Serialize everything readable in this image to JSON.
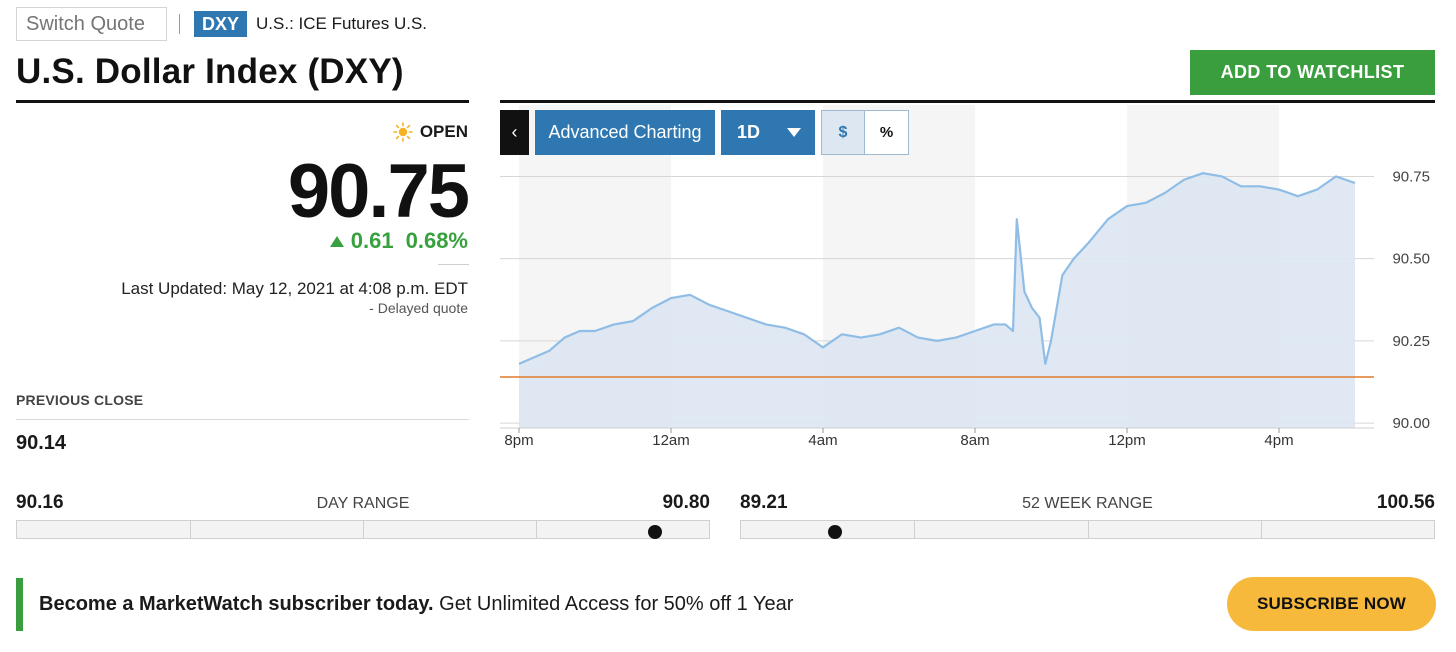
{
  "header": {
    "switch_quote_placeholder": "Switch Quote",
    "ticker": "DXY",
    "exchange": "U.S.: ICE Futures U.S.",
    "title": "U.S. Dollar Index (DXY)",
    "watchlist_label": "ADD TO  WATCHLIST"
  },
  "quote": {
    "market_status": "OPEN",
    "status_icon": "sun-icon",
    "price": "90.75",
    "change": "0.61",
    "change_percent": "0.68%",
    "change_direction": "up",
    "last_updated": "Last Updated: May 12, 2021 at 4:08 p.m. EDT",
    "delayed": "-  Delayed quote",
    "previous_close_label": "PREVIOUS CLOSE",
    "previous_close": "90.14"
  },
  "toolbar": {
    "back_icon": "chevron-left-icon",
    "advanced_label": "Advanced Charting",
    "period_label": "1D",
    "dollar_label": "$",
    "percent_label": "%"
  },
  "chart_data": {
    "type": "area",
    "x_tick_labels": [
      "8pm",
      "12am",
      "4am",
      "8am",
      "12pm",
      "4pm"
    ],
    "y_tick_labels": [
      "90.75",
      "90.50",
      "90.25",
      "90.00"
    ],
    "ylim": [
      90.0,
      90.75
    ],
    "x_range_hours": [
      -0.5,
      22.5
    ],
    "previous_close_line": 90.14,
    "line_color": "#8fbde6",
    "fill_color": "#dde7f2",
    "prev_close_color": "#e07a2a",
    "x": [
      0,
      0.4,
      0.8,
      1.2,
      1.6,
      2,
      2.5,
      3,
      3.5,
      4,
      4.5,
      5,
      5.5,
      6,
      6.5,
      7,
      7.5,
      8,
      8.5,
      9,
      9.5,
      10,
      10.5,
      11,
      11.5,
      12,
      12.5,
      12.8,
      13.0,
      13.1,
      13.3,
      13.5,
      13.7,
      13.85,
      14.0,
      14.3,
      14.6,
      15,
      15.5,
      16,
      16.5,
      17,
      17.5,
      18,
      18.5,
      19,
      19.5,
      20,
      20.5,
      21,
      21.5,
      22
    ],
    "values": [
      90.18,
      90.2,
      90.22,
      90.26,
      90.28,
      90.28,
      90.3,
      90.31,
      90.35,
      90.38,
      90.39,
      90.36,
      90.34,
      90.32,
      90.3,
      90.29,
      90.27,
      90.23,
      90.27,
      90.26,
      90.27,
      90.29,
      90.26,
      90.25,
      90.26,
      90.28,
      90.3,
      90.3,
      90.28,
      90.62,
      90.4,
      90.35,
      90.32,
      90.18,
      90.25,
      90.45,
      90.5,
      90.55,
      90.62,
      90.66,
      90.67,
      90.7,
      90.74,
      90.76,
      90.75,
      90.72,
      90.72,
      90.71,
      90.69,
      90.71,
      90.75,
      90.73
    ]
  },
  "day_range": {
    "label": "DAY RANGE",
    "low": "90.16",
    "high": "90.80",
    "current": 90.75
  },
  "week52_range": {
    "label": "52 WEEK RANGE",
    "low": "89.21",
    "high": "100.56",
    "current": 90.75
  },
  "promo": {
    "bold_text": "Become a MarketWatch subscriber today.",
    "text": " Get Unlimited Access for 50% off 1 Year",
    "subscribe_label": "SUBSCRIBE NOW"
  }
}
